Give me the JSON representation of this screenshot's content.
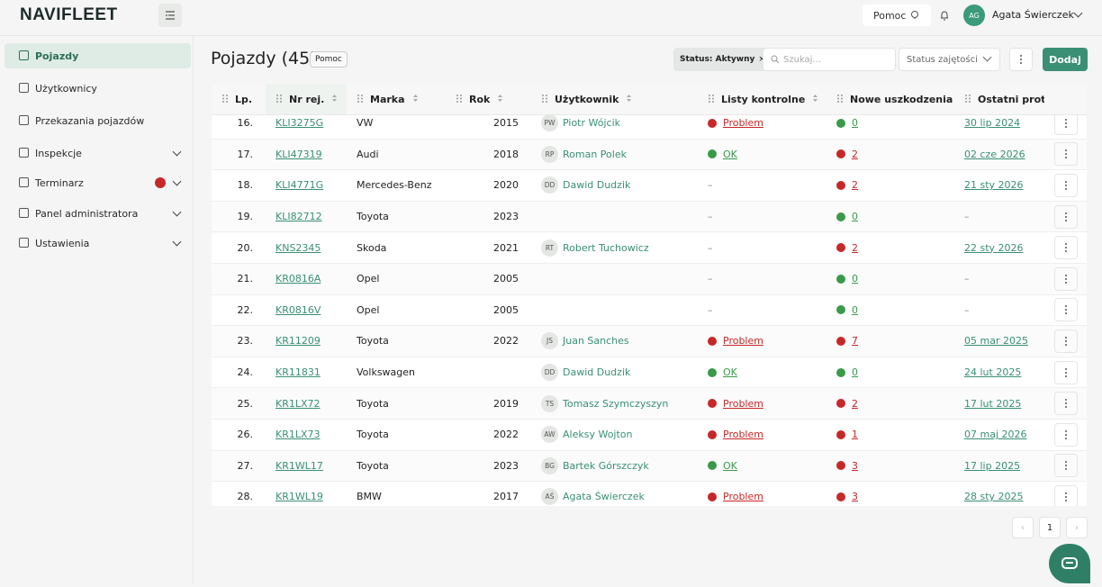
{
  "header": {
    "logo": "NAVIFLEET",
    "help": "Pomoc",
    "user_initials": "AG",
    "user_name": "Agata Świerczek"
  },
  "sidebar": {
    "items": [
      "Pojazdy",
      "Użytkownicy",
      "Przekazania pojazdów",
      "Inspekcje",
      "Terminarz",
      "Panel administratora",
      "Ustawienia"
    ]
  },
  "page": {
    "title": "Pojazdy (45)",
    "help": "Pomoc",
    "filter_chip": "Status: Aktywny",
    "search_placeholder": "Szukaj...",
    "status_select": "Status zajętości",
    "add_button": "Dodaj"
  },
  "table": {
    "columns": [
      "Lp.",
      "Nr rej.",
      "Marka",
      "Rok",
      "Użytkownik",
      "Listy kontrolne",
      "Nowe uszkodzenia",
      "Ostatni protokół"
    ],
    "empty": "–",
    "rows": [
      {
        "lp": "16.",
        "reg": "KLI3275G",
        "make": "VW",
        "year": 2015,
        "user_initials": "PW",
        "user": "Piotr Wójcik",
        "checklist": {
          "label": "Problem",
          "color": "#c62828"
        },
        "damages": {
          "count": 0,
          "color": "#3a9a4a"
        },
        "last_protocol": "30 lip 2024"
      },
      {
        "lp": "17.",
        "reg": "KLI47319",
        "make": "Audi",
        "year": 2018,
        "user_initials": "RP",
        "user": "Roman Polek",
        "checklist": {
          "label": "OK",
          "color": "#3a9a4a"
        },
        "damages": {
          "count": 2,
          "color": "#c62828"
        },
        "last_protocol": "02 cze 2026"
      },
      {
        "lp": "18.",
        "reg": "KLI4771G",
        "make": "Mercedes-Benz",
        "year": 2020,
        "user_initials": "DD",
        "user": "Dawid Dudzik",
        "checklist": null,
        "damages": {
          "count": 2,
          "color": "#c62828"
        },
        "last_protocol": "21 sty 2026"
      },
      {
        "lp": "19.",
        "reg": "KLI82712",
        "make": "Toyota",
        "year": 2023,
        "user_initials": null,
        "user": null,
        "checklist": null,
        "damages": {
          "count": 0,
          "color": "#3a9a4a"
        },
        "last_protocol": null
      },
      {
        "lp": "20.",
        "reg": "KNS2345",
        "make": "Skoda",
        "year": 2021,
        "user_initials": "RT",
        "user": "Robert Tuchowicz",
        "checklist": null,
        "damages": {
          "count": 2,
          "color": "#c62828"
        },
        "last_protocol": "22 sty 2026"
      },
      {
        "lp": "21.",
        "reg": "KR0816A",
        "make": "Opel",
        "year": 2005,
        "user_initials": null,
        "user": null,
        "checklist": null,
        "damages": {
          "count": 0,
          "color": "#3a9a4a"
        },
        "last_protocol": null
      },
      {
        "lp": "22.",
        "reg": "KR0816V",
        "make": "Opel",
        "year": 2005,
        "user_initials": null,
        "user": null,
        "checklist": null,
        "damages": {
          "count": 0,
          "color": "#3a9a4a"
        },
        "last_protocol": null
      },
      {
        "lp": "23.",
        "reg": "KR11209",
        "make": "Toyota",
        "year": 2022,
        "user_initials": "JS",
        "user": "Juan Sanches",
        "checklist": {
          "label": "Problem",
          "color": "#c62828"
        },
        "damages": {
          "count": 7,
          "color": "#c62828"
        },
        "last_protocol": "05 mar 2025"
      },
      {
        "lp": "24.",
        "reg": "KR11831",
        "make": "Volkswagen",
        "year": null,
        "user_initials": "DD",
        "user": "Dawid Dudzik",
        "checklist": {
          "label": "OK",
          "color": "#3a9a4a"
        },
        "damages": {
          "count": 0,
          "color": "#3a9a4a"
        },
        "last_protocol": "24 lut 2025"
      },
      {
        "lp": "25.",
        "reg": "KR1LX72",
        "make": "Toyota",
        "year": 2019,
        "user_initials": "TS",
        "user": "Tomasz Szymczyszyn",
        "checklist": {
          "label": "Problem",
          "color": "#c62828"
        },
        "damages": {
          "count": 2,
          "color": "#c62828"
        },
        "last_protocol": "17 lut 2025"
      },
      {
        "lp": "26.",
        "reg": "KR1LX73",
        "make": "Toyota",
        "year": 2022,
        "user_initials": "AW",
        "user": "Aleksy Wojton",
        "checklist": {
          "label": "Problem",
          "color": "#c62828"
        },
        "damages": {
          "count": 1,
          "color": "#c62828"
        },
        "last_protocol": "07 maj 2026"
      },
      {
        "lp": "27.",
        "reg": "KR1WL17",
        "make": "Toyota",
        "year": 2023,
        "user_initials": "BG",
        "user": "Bartek Górszczyk",
        "checklist": {
          "label": "OK",
          "color": "#3a9a4a"
        },
        "damages": {
          "count": 3,
          "color": "#c62828"
        },
        "last_protocol": "17 lip 2025"
      },
      {
        "lp": "28.",
        "reg": "KR1WL19",
        "make": "BMW",
        "year": 2017,
        "user_initials": "AŚ",
        "user": "Agata Świerczek",
        "checklist": {
          "label": "Problem",
          "color": "#c62828"
        },
        "damages": {
          "count": 3,
          "color": "#c62828"
        },
        "last_protocol": "28 sty 2025"
      }
    ]
  },
  "pagination": {
    "page": 1
  }
}
